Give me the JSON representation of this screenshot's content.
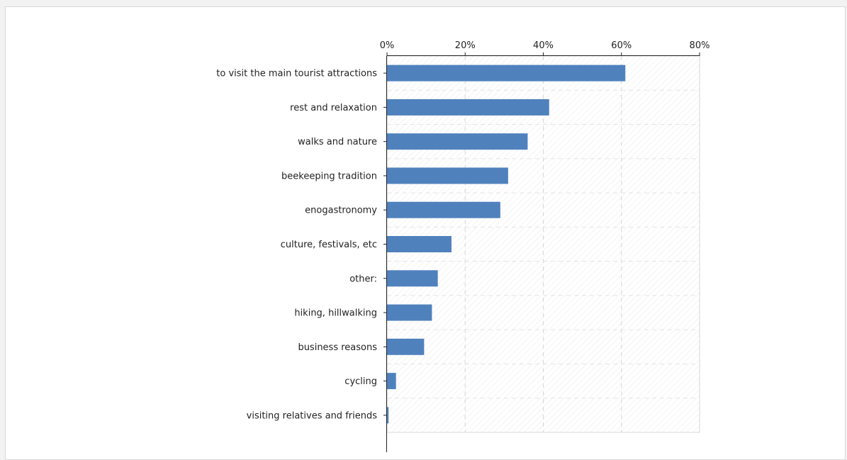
{
  "chart_data": {
    "type": "bar",
    "orientation": "horizontal",
    "categories": [
      "to visit the main tourist attractions",
      "rest and relaxation",
      "walks and nature",
      "beekeeping tradition",
      "enogastronomy",
      "culture, festivals, etc",
      "other:",
      "hiking, hillwalking",
      "business reasons",
      "cycling",
      "visiting relatives and friends"
    ],
    "values": [
      61,
      41.5,
      36,
      31,
      29,
      16.5,
      13,
      11.5,
      9.5,
      2.3,
      0.4
    ],
    "xlim": [
      0,
      80
    ],
    "xticks": [
      0,
      20,
      40,
      60,
      80
    ],
    "xtick_labels": [
      "0%",
      "20%",
      "40%",
      "60%",
      "80%"
    ],
    "x_axis_position": "top",
    "grid": true,
    "bar_color": "#4f81bd",
    "title": "",
    "xlabel": "",
    "ylabel": ""
  }
}
